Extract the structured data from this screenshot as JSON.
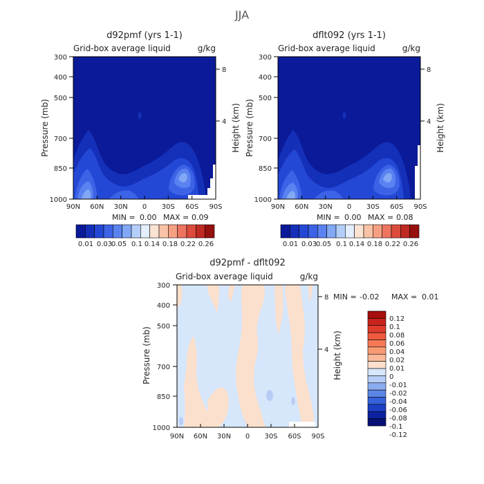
{
  "page_title": "JJA",
  "colors": {
    "base_blue": "#0a1a99",
    "diff_bg": "#d6e6fb",
    "diff_pos": "#fbe0cd"
  },
  "chart_data": [
    {
      "id": "panel1",
      "type": "heatmap",
      "title": "d92pmf (yrs 1-1)",
      "subtitle": "Grid-box average liquid",
      "units": "g/kg",
      "xlabel": "",
      "ylabel": "Pressure (mb)",
      "ylabel_right": "Height (km)",
      "x_ticks": [
        "90N",
        "60N",
        "30N",
        "0",
        "30S",
        "60S",
        "90S"
      ],
      "y_ticks": [
        "300",
        "400",
        "500",
        "700",
        "850",
        "1000"
      ],
      "y_right_ticks": [
        "8",
        "4"
      ],
      "stats": {
        "min_label": "MIN =",
        "min": "0.00",
        "max_label": "MAX =",
        "max": "0.09"
      },
      "colorbar_labels": [
        "0.01",
        "0.03",
        "0.05",
        "0.1",
        "0.14",
        "0.18",
        "0.22",
        "0.26"
      ],
      "colorbar_colors": [
        "#0a1a99",
        "#1530b8",
        "#2448d6",
        "#3c62e6",
        "#5a82f0",
        "#82a8f5",
        "#b4cefa",
        "#e4eefd",
        "#fbe3d3",
        "#f8c3a6",
        "#f6a082",
        "#ee7460",
        "#dc4c3c",
        "#bf2a22",
        "#96100e"
      ]
    },
    {
      "id": "panel2",
      "type": "heatmap",
      "title": "dflt092 (yrs 1-1)",
      "subtitle": "Grid-box average liquid",
      "units": "g/kg",
      "xlabel": "",
      "ylabel": "Pressure (mb)",
      "ylabel_right": "Height (km)",
      "x_ticks": [
        "90N",
        "60N",
        "30N",
        "0",
        "30S",
        "60S",
        "90S"
      ],
      "y_ticks": [
        "300",
        "400",
        "500",
        "700",
        "850",
        "1000"
      ],
      "y_right_ticks": [
        "8",
        "4"
      ],
      "stats": {
        "min_label": "MIN =",
        "min": "0.00",
        "max_label": "MAX =",
        "max": "0.08"
      },
      "colorbar_labels": [
        "0.01",
        "0.03",
        "0.05",
        "0.1",
        "0.14",
        "0.18",
        "0.22",
        "0.26"
      ],
      "colorbar_colors": [
        "#0a1a99",
        "#1530b8",
        "#2448d6",
        "#3c62e6",
        "#5a82f0",
        "#82a8f5",
        "#b4cefa",
        "#e4eefd",
        "#fbe3d3",
        "#f8c3a6",
        "#f6a082",
        "#ee7460",
        "#dc4c3c",
        "#bf2a22",
        "#96100e"
      ]
    },
    {
      "id": "panel3",
      "type": "heatmap",
      "title": "d92pmf - dflt092",
      "subtitle": "Grid-box average liquid",
      "units": "g/kg",
      "xlabel": "",
      "ylabel": "Pressure (mb)",
      "ylabel_right": "Height (km)",
      "x_ticks": [
        "90N",
        "60N",
        "30N",
        "0",
        "30S",
        "60S",
        "90S"
      ],
      "y_ticks": [
        "300",
        "400",
        "500",
        "700",
        "850",
        "1000"
      ],
      "y_right_ticks": [
        "8",
        "4"
      ],
      "stats": {
        "min_label": "MIN =",
        "min": "-0.02",
        "max_label": "MAX =",
        "max": "0.01"
      },
      "colorbar_labels": [
        "0.12",
        "0.1",
        "0.08",
        "0.06",
        "0.04",
        "0.02",
        "0.01",
        "0",
        "-0.01",
        "-0.02",
        "-0.04",
        "-0.06",
        "-0.08",
        "-0.1",
        "-0.12"
      ],
      "colorbar_colors": [
        "#a50f0d",
        "#c8231c",
        "#e03c2c",
        "#ef5a3e",
        "#f57a55",
        "#f89a74",
        "#fab99a",
        "#fbe0cd",
        "#d6e6fb",
        "#b7cdf6",
        "#8cacf0",
        "#5b86e6",
        "#3562db",
        "#1c3fc4",
        "#0c22a0",
        "#050f75"
      ]
    }
  ]
}
